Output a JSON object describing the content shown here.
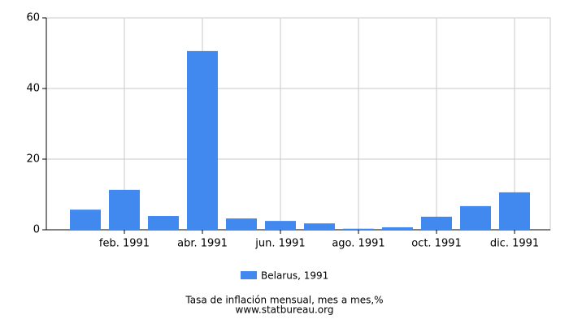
{
  "chart_data": {
    "type": "bar",
    "title": "Tasa de inflación mensual, mes a mes,%",
    "source": "www.statbureau.org",
    "categories": [
      null,
      "feb. 1991",
      null,
      "abr. 1991",
      null,
      "jun. 1991",
      null,
      "ago. 1991",
      null,
      "oct. 1991",
      null,
      "dic. 1991"
    ],
    "series": [
      {
        "name": "Belarus, 1991",
        "color": "#4189ef",
        "values": [
          5.7,
          11.3,
          3.9,
          50.6,
          3.2,
          2.5,
          1.8,
          0.3,
          0.7,
          3.7,
          6.7,
          10.6
        ]
      }
    ],
    "ylim": [
      0,
      60
    ],
    "yticks": [
      0,
      20,
      40,
      60
    ],
    "grid": true
  }
}
